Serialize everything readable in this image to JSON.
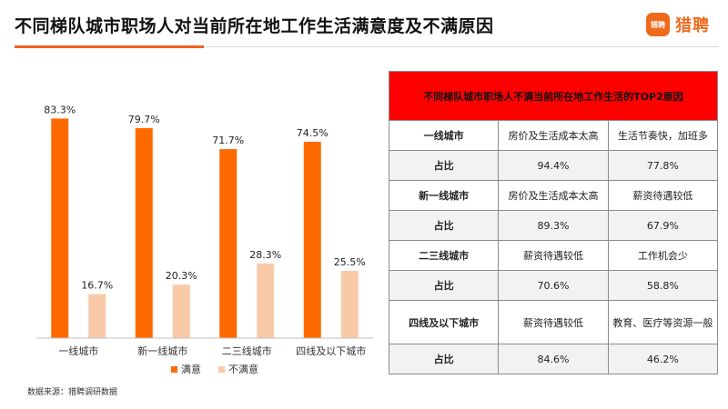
{
  "header": {
    "title": "不同梯队城市职场人对当前所在地工作生活满意度及不满原因",
    "logo_mark": "猎聘",
    "logo_text": "猎聘"
  },
  "colors": {
    "satisfied": "#ff6a00",
    "unsatisfied": "#f8caa8",
    "accent": "#f0621e",
    "table_header": "#ff0000"
  },
  "chart_data": {
    "type": "bar",
    "categories": [
      "一线城市",
      "新一线城市",
      "二三线城市",
      "四线及以下城市"
    ],
    "series": [
      {
        "name": "满意",
        "values": [
          83.3,
          79.7,
          71.7,
          74.5
        ],
        "labels": [
          "83.3%",
          "79.7%",
          "71.7%",
          "74.5%"
        ]
      },
      {
        "name": "不满意",
        "values": [
          16.7,
          20.3,
          28.3,
          25.5
        ],
        "labels": [
          "16.7%",
          "20.3%",
          "28.3%",
          "25.5%"
        ]
      }
    ],
    "ylim": [
      0,
      100
    ],
    "legend_position": "bottom"
  },
  "table": {
    "header": "不同梯队城市职场人不满当前所在地工作生活的TOP2原因",
    "ratio_label": "占比",
    "rows": [
      {
        "city": "一线城市",
        "reason1": "房价及生活成本太高",
        "reason2": "生活节奏快，加班多",
        "ratio1": "94.4%",
        "ratio2": "77.8%"
      },
      {
        "city": "新一线城市",
        "reason1": "房价及生活成本太高",
        "reason2": "薪资待遇较低",
        "ratio1": "89.3%",
        "ratio2": "67.9%"
      },
      {
        "city": "二三线城市",
        "reason1": "薪资待遇较低",
        "reason2": "工作机会少",
        "ratio1": "70.6%",
        "ratio2": "58.8%"
      },
      {
        "city": "四线及以下城市",
        "reason1": "薪资待遇较低",
        "reason2": "教育、医疗等资源一般",
        "ratio1": "84.6%",
        "ratio2": "46.2%"
      }
    ]
  },
  "footer": {
    "source": "数据来源：猎聘调研数据"
  }
}
